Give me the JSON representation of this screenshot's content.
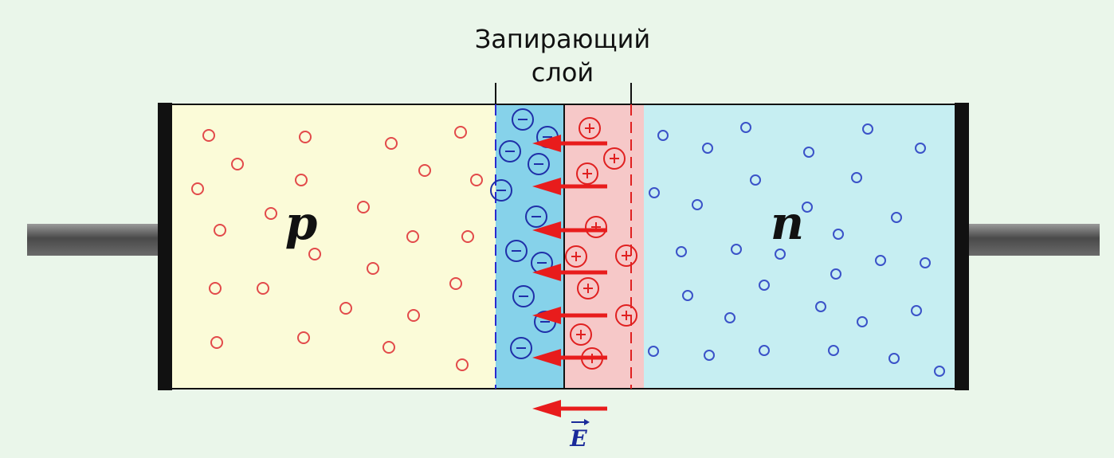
{
  "title_line1": "Запирающий",
  "title_line2": "слой",
  "p_label": "p",
  "n_label": "n",
  "field_label": "E",
  "colors": {
    "background": "#eaf6ea",
    "p_region": "#fbfbd8",
    "n_region": "#c6eef2",
    "depletion_negative": "#86d2ea",
    "depletion_positive": "#f6c8c8",
    "hole_color": "#e24a4a",
    "electron_color": "#3a52c8",
    "arrow_color": "#e81c1c",
    "lead_color": "#5c5c5c",
    "contact_color": "#111111"
  },
  "icons": {
    "hole": "small-circle-red",
    "electron": "small-circle-blue",
    "negative_ion": "minus-in-circle-icon",
    "positive_ion": "plus-in-circle-icon",
    "field_arrow": "left-arrow-icon"
  }
}
